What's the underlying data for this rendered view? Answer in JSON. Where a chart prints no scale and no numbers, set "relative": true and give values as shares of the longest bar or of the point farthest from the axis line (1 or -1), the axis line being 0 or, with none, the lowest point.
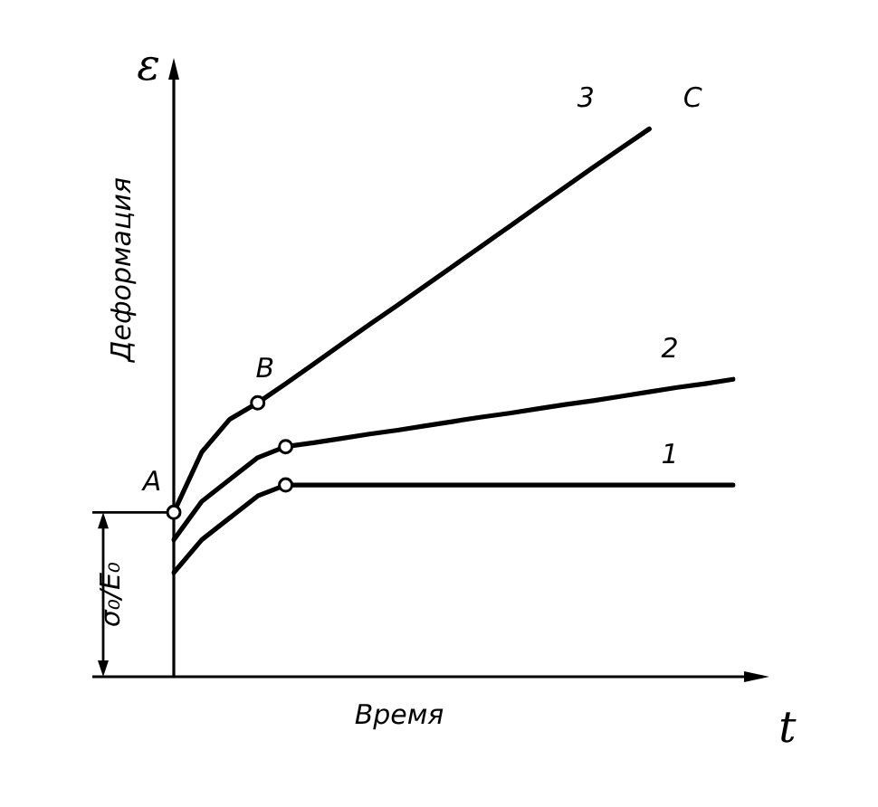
{
  "chart_data": {
    "type": "line",
    "relative": true,
    "xlabel": "Время",
    "ylabel": "Деформация",
    "tick_labels": false,
    "legend": false,
    "marker": "none",
    "line_style": "solid",
    "categories": [
      null,
      null,
      null,
      null,
      null,
      null,
      null,
      null,
      null,
      null,
      null,
      null,
      null,
      null,
      null,
      null,
      null,
      null,
      null,
      null,
      null
    ],
    "series": [
      {
        "name": "1",
        "color": "#000000",
        "values": [
          0.19,
          0.25,
          0.29,
          0.33,
          0.35,
          0.35,
          0.35,
          0.35,
          0.35,
          0.35,
          0.35,
          0.35,
          0.35,
          0.35,
          0.35,
          0.35,
          0.35,
          0.35,
          0.35,
          0.35,
          0.35
        ]
      },
      {
        "name": "2",
        "color": "#000000",
        "values": [
          0.25,
          0.32,
          0.36,
          0.4,
          0.42,
          0.427,
          0.435,
          0.443,
          0.45,
          0.458,
          0.466,
          0.474,
          0.481,
          0.489,
          0.497,
          0.504,
          0.512,
          0.52,
          0.528,
          0.535,
          0.543
        ]
      },
      {
        "name": "3",
        "color": "#000000",
        "values": [
          0.3,
          0.41,
          0.47,
          0.5,
          0.535,
          0.571,
          0.607,
          0.643,
          0.678,
          0.714,
          0.75,
          0.786,
          0.822,
          0.858,
          0.894,
          0.93,
          0.965,
          1,
          null,
          null,
          null
        ]
      }
    ],
    "annotations": [
      "ε",
      "t",
      "σ₀/E₀",
      "A",
      "B",
      "C"
    ]
  }
}
